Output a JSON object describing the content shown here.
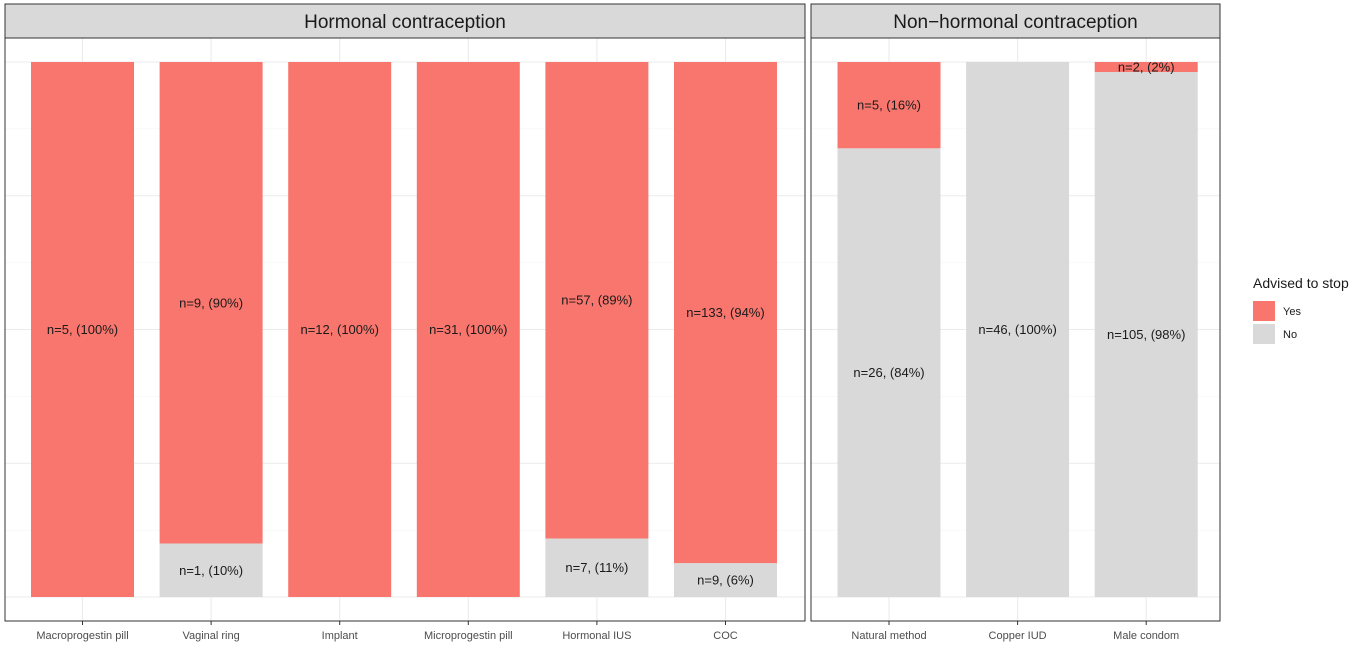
{
  "chart_data": {
    "type": "bar",
    "stacked": true,
    "normalized": true,
    "facets": [
      {
        "title": "Hormonal contraception",
        "categories": [
          "Macroprogestin pill",
          "Vaginal ring",
          "Implant",
          "Microprogestin pill",
          "Hormonal IUS",
          "COC"
        ],
        "series": [
          {
            "name": "Yes",
            "values": [
              5,
              9,
              12,
              31,
              57,
              133
            ],
            "labels": [
              "n=5, (100%)",
              "n=9, (90%)",
              "n=12, (100%)",
              "n=31, (100%)",
              "n=57, (89%)",
              "n=133, (94%)"
            ]
          },
          {
            "name": "No",
            "values": [
              0,
              1,
              0,
              0,
              7,
              9
            ],
            "labels": [
              "",
              "n=1, (10%)",
              "",
              "",
              "n=7, (11%)",
              "n=9, (6%)"
            ]
          }
        ]
      },
      {
        "title": "Non−hormonal contraception",
        "categories": [
          "Natural method",
          "Copper IUD",
          "Male condom"
        ],
        "series": [
          {
            "name": "Yes",
            "values": [
              5,
              0,
              2
            ],
            "labels": [
              "n=5, (16%)",
              "",
              "n=2, (2%)"
            ]
          },
          {
            "name": "No",
            "values": [
              26,
              46,
              105
            ],
            "labels": [
              "n=26, (84%)",
              "n=46, (100%)",
              "n=105, (98%)"
            ]
          }
        ]
      }
    ],
    "legend": {
      "title": "Advised to stop",
      "position": "right",
      "entries": [
        {
          "label": "Yes",
          "color": "#F8766D"
        },
        {
          "label": "No",
          "color": "#D9D9D9"
        }
      ]
    },
    "xlabel": "",
    "ylabel": "",
    "grid": true
  }
}
